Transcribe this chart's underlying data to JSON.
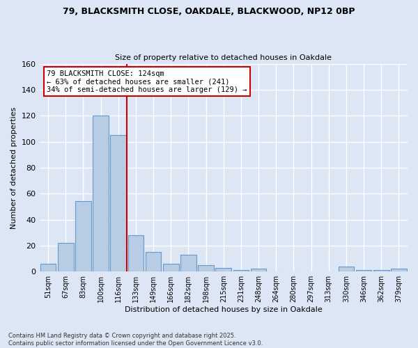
{
  "title_line1": "79, BLACKSMITH CLOSE, OAKDALE, BLACKWOOD, NP12 0BP",
  "title_line2": "Size of property relative to detached houses in Oakdale",
  "xlabel": "Distribution of detached houses by size in Oakdale",
  "ylabel": "Number of detached properties",
  "categories": [
    "51sqm",
    "67sqm",
    "83sqm",
    "100sqm",
    "116sqm",
    "133sqm",
    "149sqm",
    "166sqm",
    "182sqm",
    "198sqm",
    "215sqm",
    "231sqm",
    "248sqm",
    "264sqm",
    "280sqm",
    "297sqm",
    "313sqm",
    "330sqm",
    "346sqm",
    "362sqm",
    "379sqm"
  ],
  "values": [
    6,
    22,
    54,
    120,
    105,
    28,
    15,
    6,
    13,
    5,
    3,
    1,
    2,
    0,
    0,
    0,
    0,
    4,
    1,
    1,
    2
  ],
  "bar_color": "#b8cce4",
  "bar_edge_color": "#6699cc",
  "ylim": [
    0,
    160
  ],
  "yticks": [
    0,
    20,
    40,
    60,
    80,
    100,
    120,
    140,
    160
  ],
  "property_line_x": 4.5,
  "annotation_text": "79 BLACKSMITH CLOSE: 124sqm\n← 63% of detached houses are smaller (241)\n34% of semi-detached houses are larger (129) →",
  "annotation_box_color": "#ffffff",
  "annotation_box_edge": "#cc0000",
  "annotation_text_color": "#000000",
  "vline_color": "#cc0000",
  "background_color": "#dce6f5",
  "grid_color": "#ffffff",
  "footer_text": "Contains HM Land Registry data © Crown copyright and database right 2025.\nContains public sector information licensed under the Open Government Licence v3.0."
}
